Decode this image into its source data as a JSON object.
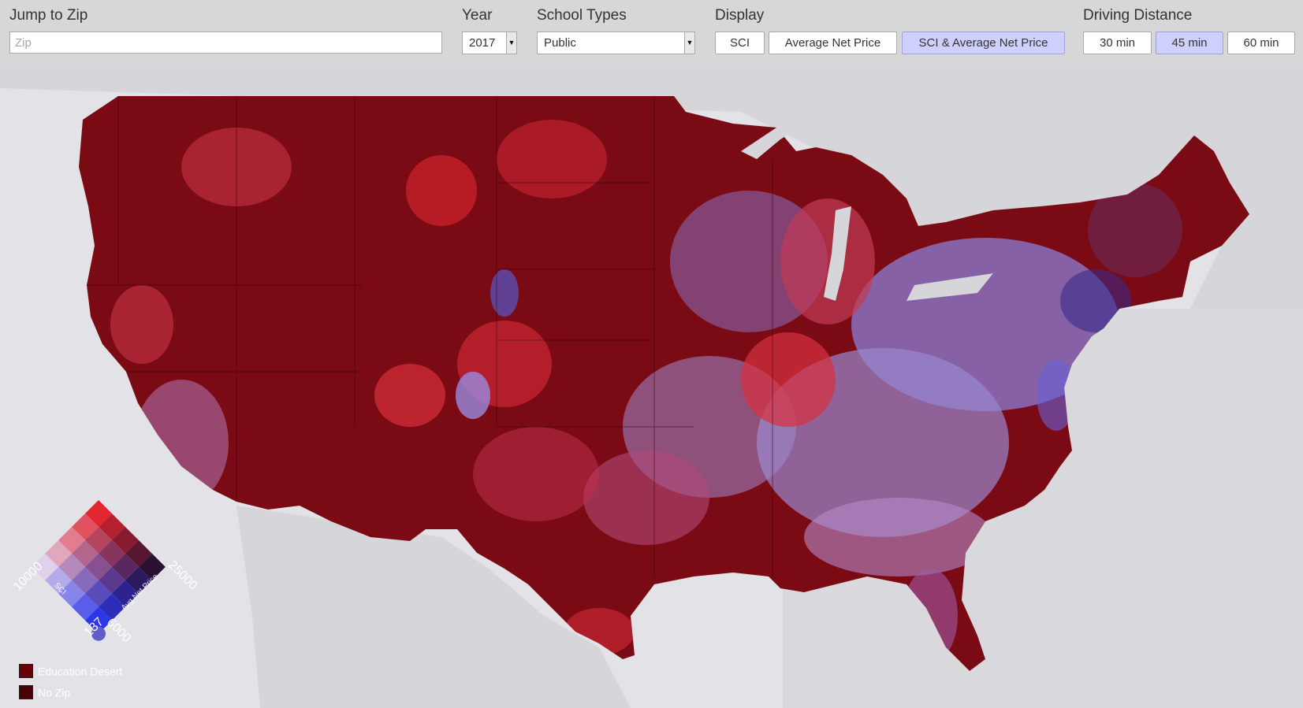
{
  "toolbar": {
    "zip": {
      "label": "Jump to Zip",
      "placeholder": "Zip",
      "value": ""
    },
    "year": {
      "label": "Year",
      "value": "2017"
    },
    "school_types": {
      "label": "School Types",
      "value": "Public"
    },
    "display": {
      "label": "Display",
      "options": [
        "SCI",
        "Average Net Price",
        "SCI & Average Net Price"
      ],
      "selected": "SCI & Average Net Price"
    },
    "driving_distance": {
      "label": "Driving Distance",
      "options": [
        "30 min",
        "45 min",
        "60 min"
      ],
      "selected": "45 min"
    }
  },
  "legend": {
    "sci_min": "137",
    "sci_max": "10000",
    "sci_axis_label": "SCI",
    "price_min": "6000",
    "price_max": "25000",
    "price_axis_label": "Avg Net Price",
    "education_desert": "Education Desert",
    "no_zip": "No Zip",
    "colors": {
      "education_desert": "#6b0008",
      "no_zip": "#4a0007",
      "red_high": "#e3262f",
      "blue_high": "#2d36e8",
      "both_high": "#2a1033",
      "both_low": "#e0d2ec",
      "marker": "#5b5fc7"
    }
  }
}
